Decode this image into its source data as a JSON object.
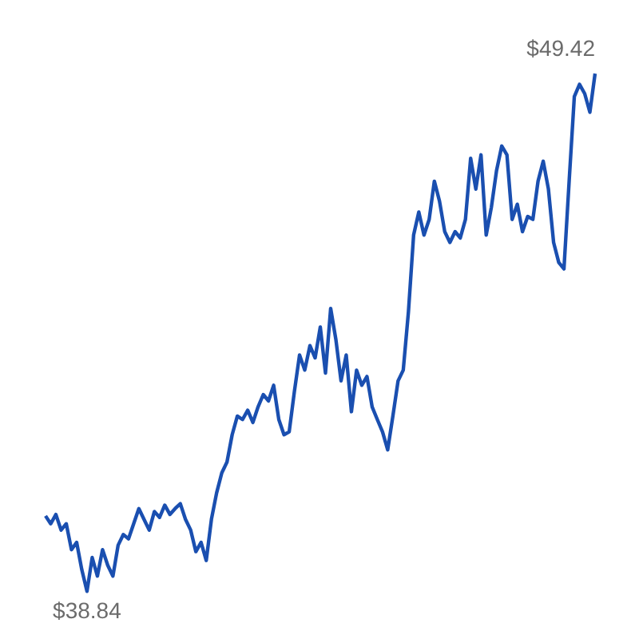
{
  "chart_data": {
    "type": "line",
    "categories": [
      null,
      null,
      null,
      null,
      null,
      null,
      null,
      null,
      null,
      null,
      null,
      null,
      null,
      null,
      null,
      null,
      null,
      null,
      null,
      null,
      null,
      null,
      null,
      null,
      null,
      null,
      null,
      null,
      null,
      null,
      null,
      null,
      null,
      null,
      null,
      null,
      null,
      null,
      null,
      null,
      null,
      null,
      null,
      null,
      null,
      null,
      null,
      null,
      null,
      null,
      null,
      null,
      null,
      null,
      null,
      null,
      null,
      null,
      null,
      null,
      null,
      null,
      null,
      null,
      null,
      null,
      null,
      null,
      null,
      null,
      null,
      null,
      null,
      null,
      null,
      null,
      null,
      null,
      null,
      null,
      null,
      null,
      null,
      null,
      null,
      null,
      null,
      null,
      null,
      null,
      null,
      null,
      null,
      null,
      null,
      null,
      null,
      null,
      null,
      null,
      null,
      null,
      null,
      null,
      null,
      null,
      null
    ],
    "series": [
      {
        "color": "#1a4fb0",
        "values": [
          40.38,
          40.22,
          40.41,
          40.09,
          40.22,
          39.69,
          39.84,
          39.28,
          38.84,
          39.53,
          39.15,
          39.69,
          39.37,
          39.15,
          39.78,
          40.0,
          39.91,
          40.22,
          40.53,
          40.31,
          40.09,
          40.47,
          40.35,
          40.6,
          40.41,
          40.53,
          40.63,
          40.31,
          40.09,
          39.65,
          39.84,
          39.47,
          40.31,
          40.85,
          41.26,
          41.48,
          42.04,
          42.42,
          42.35,
          42.54,
          42.29,
          42.61,
          42.86,
          42.73,
          43.05,
          42.35,
          42.04,
          42.1,
          42.92,
          43.67,
          43.36,
          43.86,
          43.61,
          44.24,
          43.3,
          44.62,
          43.99,
          43.14,
          43.67,
          42.51,
          43.36,
          43.05,
          43.23,
          42.61,
          42.35,
          42.1,
          41.73,
          42.42,
          43.14,
          43.36,
          44.55,
          46.12,
          46.59,
          46.12,
          46.44,
          47.22,
          46.81,
          46.19,
          45.97,
          46.19,
          46.06,
          46.44,
          47.69,
          47.06,
          47.76,
          46.12,
          46.69,
          47.44,
          47.94,
          47.76,
          46.44,
          46.75,
          46.19,
          46.5,
          46.44,
          47.22,
          47.63,
          47.06,
          45.97,
          45.56,
          45.43,
          47.22,
          48.95,
          49.2,
          49.01,
          48.63,
          49.42
        ],
        "value_labels": [
          null,
          null,
          null,
          null,
          null,
          null,
          null,
          null,
          "$38.84",
          null,
          null,
          null,
          null,
          null,
          null,
          null,
          null,
          null,
          null,
          null,
          null,
          null,
          null,
          null,
          null,
          null,
          null,
          null,
          null,
          null,
          null,
          null,
          null,
          null,
          null,
          null,
          null,
          null,
          null,
          null,
          null,
          null,
          null,
          null,
          null,
          null,
          null,
          null,
          null,
          null,
          null,
          null,
          null,
          null,
          null,
          null,
          null,
          null,
          null,
          null,
          null,
          null,
          null,
          null,
          null,
          null,
          null,
          null,
          null,
          null,
          null,
          null,
          null,
          null,
          null,
          null,
          null,
          null,
          null,
          null,
          null,
          null,
          null,
          null,
          null,
          null,
          null,
          null,
          null,
          null,
          null,
          null,
          null,
          null,
          null,
          null,
          null,
          null,
          null,
          null,
          null,
          null,
          null,
          null,
          null,
          null,
          "$49.42"
        ]
      }
    ],
    "grid": false,
    "marker": "none",
    "line_style": "solid",
    "tick_labels": false
  }
}
